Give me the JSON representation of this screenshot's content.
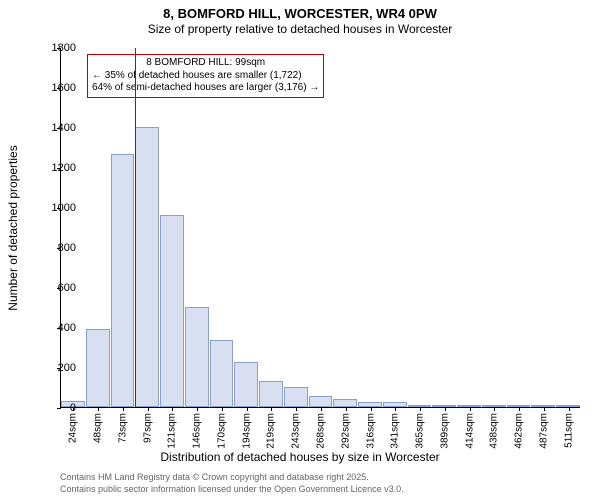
{
  "chart": {
    "type": "histogram",
    "title_main": "8, BOMFORD HILL, WORCESTER, WR4 0PW",
    "title_sub": "Size of property relative to detached houses in Worcester",
    "ylabel": "Number of detached properties",
    "xlabel": "Distribution of detached houses by size in Worcester",
    "ylim": [
      0,
      1800
    ],
    "ytick_step": 200,
    "bar_fill": "#d7dff0",
    "bar_stroke": "#8aa0c8",
    "indicator_color": "#c00000",
    "background_color": "#ffffff",
    "categories": [
      "24sqm",
      "48sqm",
      "73sqm",
      "97sqm",
      "121sqm",
      "146sqm",
      "170sqm",
      "194sqm",
      "219sqm",
      "243sqm",
      "268sqm",
      "292sqm",
      "316sqm",
      "341sqm",
      "365sqm",
      "389sqm",
      "414sqm",
      "438sqm",
      "462sqm",
      "487sqm",
      "511sqm"
    ],
    "values": [
      30,
      390,
      1265,
      1400,
      960,
      500,
      335,
      225,
      130,
      100,
      55,
      40,
      25,
      25,
      10,
      5,
      5,
      0,
      0,
      0,
      0
    ],
    "indicator_bin_index": 3,
    "annotation": {
      "line1": "8 BOMFORD HILL: 99sqm",
      "line2": "← 35% of detached houses are smaller (1,722)",
      "line3": "64% of semi-detached houses are larger (3,176) →"
    },
    "footer1": "Contains HM Land Registry data © Crown copyright and database right 2025.",
    "footer2": "Contains public sector information licensed under the Open Government Licence v3.0.",
    "title_fontsize": 13,
    "label_fontsize": 12,
    "tick_fontsize": 11,
    "xtick_fontsize": 10,
    "annotation_fontsize": 10,
    "footer_fontsize": 9
  }
}
